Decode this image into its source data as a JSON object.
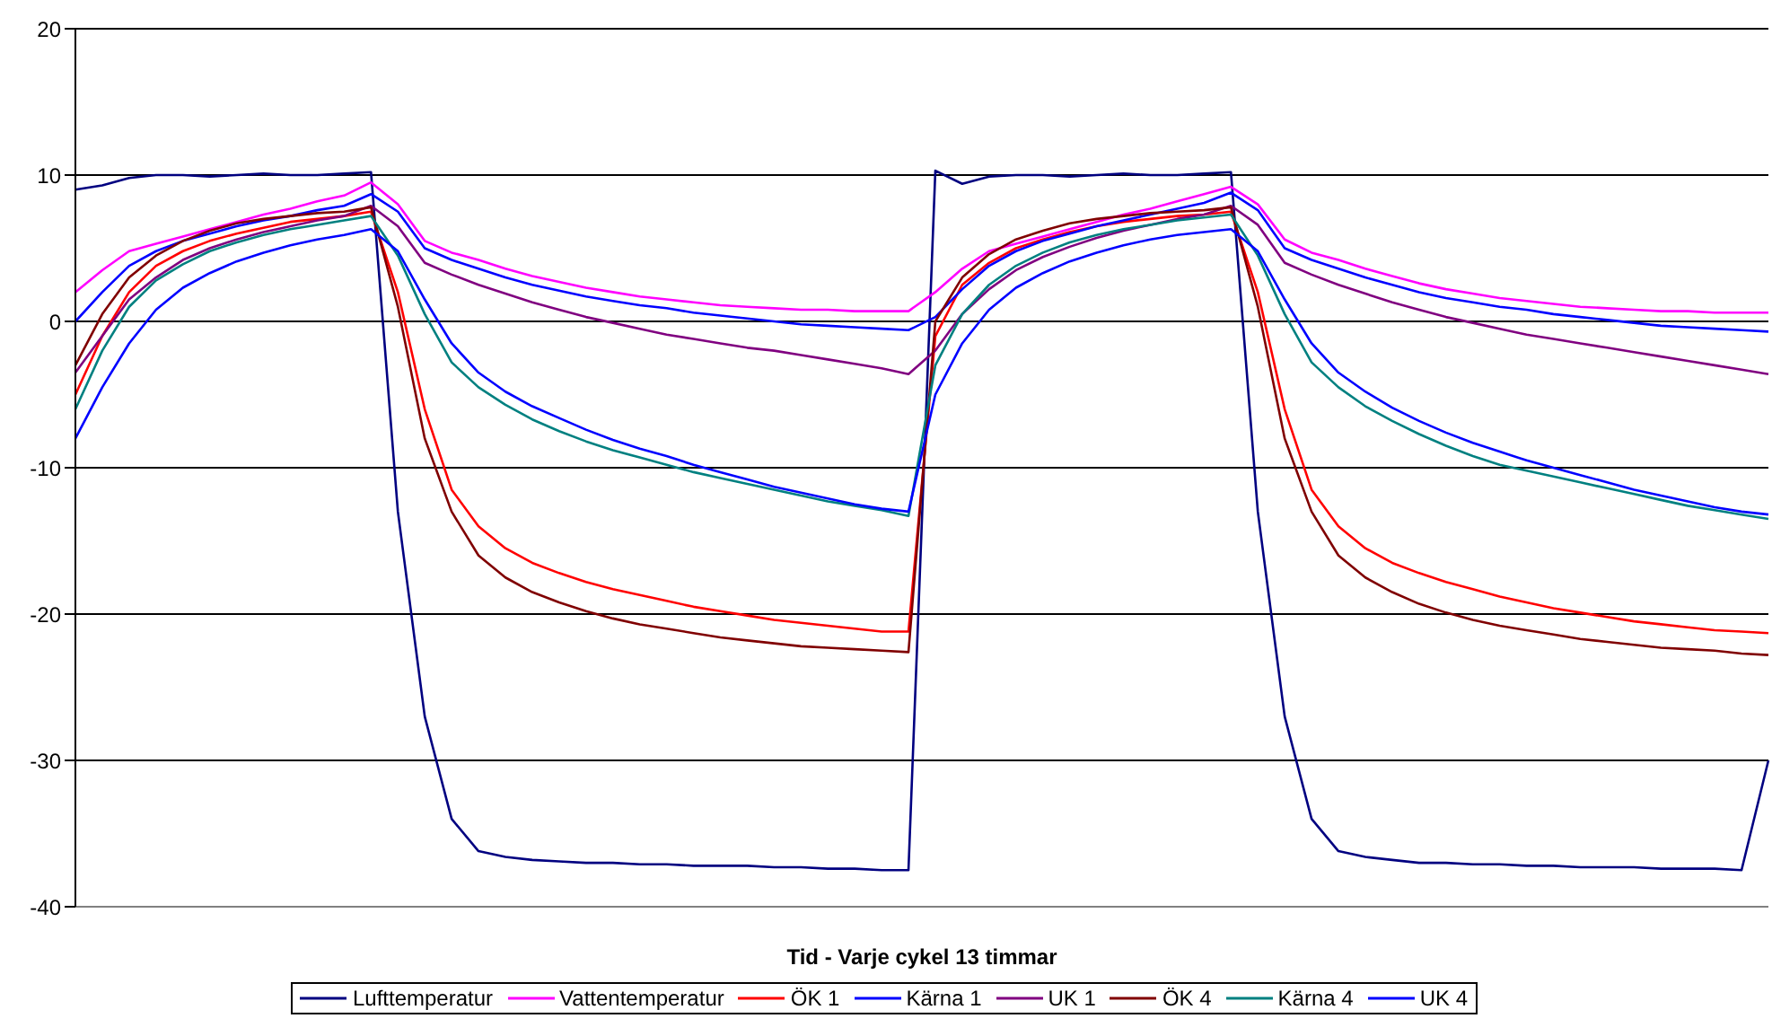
{
  "chart_data": {
    "type": "line",
    "xlabel": "Tid - Varje cykel 13 timmar",
    "categories": [
      null,
      null,
      null,
      null,
      null,
      null,
      null,
      null,
      null,
      null,
      null,
      null,
      null,
      null,
      null,
      null,
      null,
      null,
      null,
      null,
      null,
      null,
      null,
      null,
      null,
      null,
      null,
      null,
      null,
      null,
      null,
      null,
      null,
      null,
      null,
      null,
      null,
      null,
      null,
      null,
      null,
      null,
      null,
      null,
      null,
      null,
      null,
      null,
      null,
      null,
      null,
      null,
      null,
      null,
      null,
      null,
      null,
      null,
      null,
      null,
      null,
      null,
      null,
      null
    ],
    "ylim": [
      -40,
      20
    ],
    "yticks": [
      -40,
      -30,
      -20,
      -10,
      0,
      10,
      20
    ],
    "grid": "y",
    "legend": "bottom",
    "tick_labels": "y",
    "marker": "none",
    "series": [
      {
        "name": "Lufttemperatur",
        "color": "#000080",
        "values": [
          9,
          9.3,
          9.8,
          10,
          10,
          9.9,
          10,
          10.1,
          10,
          10,
          10.1,
          10.2,
          -13,
          -27,
          -34,
          -36.2,
          -36.6,
          -36.8,
          -36.9,
          -37,
          -37,
          -37.1,
          -37.1,
          -37.2,
          -37.2,
          -37.2,
          -37.3,
          -37.3,
          -37.4,
          -37.4,
          -37.5,
          -37.5,
          10.3,
          9.4,
          9.9,
          10,
          10,
          9.9,
          10,
          10.1,
          10,
          10,
          10.1,
          10.2,
          -13,
          -27,
          -34,
          -36.2,
          -36.6,
          -36.8,
          -37,
          -37,
          -37.1,
          -37.1,
          -37.2,
          -37.2,
          -37.3,
          -37.3,
          -37.3,
          -37.4,
          -37.4,
          -37.4,
          -37.5,
          -30
        ]
      },
      {
        "name": "Vattentemperatur",
        "color": "#ff00ff",
        "values": [
          2,
          3.5,
          4.8,
          5.3,
          5.8,
          6.3,
          6.8,
          7.3,
          7.7,
          8.2,
          8.6,
          9.5,
          8,
          5.5,
          4.7,
          4.2,
          3.6,
          3.1,
          2.7,
          2.3,
          2.0,
          1.7,
          1.5,
          1.3,
          1.1,
          1.0,
          0.9,
          0.8,
          0.8,
          0.7,
          0.7,
          0.7,
          2.0,
          3.6,
          4.8,
          5.3,
          5.8,
          6.3,
          6.8,
          7.3,
          7.7,
          8.2,
          8.7,
          9.2,
          8.0,
          5.6,
          4.7,
          4.2,
          3.6,
          3.1,
          2.6,
          2.2,
          1.9,
          1.6,
          1.4,
          1.2,
          1.0,
          0.9,
          0.8,
          0.7,
          0.7,
          0.6,
          0.6,
          0.6
        ]
      },
      {
        "name": "ÖK 1",
        "color": "#ff0000",
        "values": [
          -5,
          -1,
          2,
          3.8,
          4.8,
          5.5,
          6.0,
          6.4,
          6.8,
          7.0,
          7.2,
          7.5,
          2,
          -6,
          -11.5,
          -14,
          -15.5,
          -16.5,
          -17.2,
          -17.8,
          -18.3,
          -18.7,
          -19.1,
          -19.5,
          -19.8,
          -20.1,
          -20.4,
          -20.6,
          -20.8,
          -21.0,
          -21.2,
          -21.2,
          -1,
          2.5,
          4.0,
          5.0,
          5.6,
          6.1,
          6.5,
          6.8,
          7.0,
          7.2,
          7.3,
          7.5,
          2,
          -6,
          -11.5,
          -14,
          -15.5,
          -16.5,
          -17.2,
          -17.8,
          -18.3,
          -18.8,
          -19.2,
          -19.6,
          -19.9,
          -20.2,
          -20.5,
          -20.7,
          -20.9,
          -21.1,
          -21.2,
          -21.3
        ]
      },
      {
        "name": "Kärna 1",
        "color": "#0000ff",
        "values": [
          0,
          2,
          3.8,
          4.8,
          5.5,
          6.0,
          6.5,
          6.9,
          7.2,
          7.6,
          7.9,
          8.7,
          7.5,
          5,
          4.2,
          3.6,
          3.0,
          2.5,
          2.1,
          1.7,
          1.4,
          1.1,
          0.9,
          0.6,
          0.4,
          0.2,
          0.0,
          -0.2,
          -0.3,
          -0.4,
          -0.5,
          -0.6,
          0.3,
          2.2,
          3.8,
          4.8,
          5.5,
          6.0,
          6.5,
          6.9,
          7.3,
          7.7,
          8.1,
          8.8,
          7.6,
          5.0,
          4.2,
          3.6,
          3.0,
          2.5,
          2.0,
          1.6,
          1.3,
          1.0,
          0.8,
          0.5,
          0.3,
          0.1,
          -0.1,
          -0.3,
          -0.4,
          -0.5,
          -0.6,
          -0.7
        ]
      },
      {
        "name": "UK 1",
        "color": "#800080",
        "values": [
          -3.5,
          -1,
          1.5,
          3,
          4.2,
          5.0,
          5.6,
          6.1,
          6.5,
          6.9,
          7.2,
          7.9,
          6.5,
          4.0,
          3.2,
          2.5,
          1.9,
          1.3,
          0.8,
          0.3,
          -0.1,
          -0.5,
          -0.9,
          -1.2,
          -1.5,
          -1.8,
          -2.0,
          -2.3,
          -2.6,
          -2.9,
          -3.2,
          -3.6,
          -2.0,
          0.5,
          2.2,
          3.5,
          4.4,
          5.1,
          5.7,
          6.2,
          6.6,
          7.0,
          7.3,
          7.9,
          6.6,
          4.0,
          3.2,
          2.5,
          1.9,
          1.3,
          0.8,
          0.3,
          -0.1,
          -0.5,
          -0.9,
          -1.2,
          -1.5,
          -1.8,
          -2.1,
          -2.4,
          -2.7,
          -3.0,
          -3.3,
          -3.6
        ]
      },
      {
        "name": "ÖK 4",
        "color": "#800000",
        "values": [
          -3,
          0.5,
          3,
          4.5,
          5.5,
          6.2,
          6.7,
          7.0,
          7.2,
          7.4,
          7.5,
          7.8,
          1.0,
          -8,
          -13,
          -16,
          -17.5,
          -18.5,
          -19.2,
          -19.8,
          -20.3,
          -20.7,
          -21.0,
          -21.3,
          -21.6,
          -21.8,
          -22.0,
          -22.2,
          -22.3,
          -22.4,
          -22.5,
          -22.6,
          0,
          3,
          4.6,
          5.6,
          6.2,
          6.7,
          7.0,
          7.2,
          7.4,
          7.5,
          7.6,
          7.8,
          1.0,
          -8,
          -13,
          -16,
          -17.5,
          -18.5,
          -19.3,
          -19.9,
          -20.4,
          -20.8,
          -21.1,
          -21.4,
          -21.7,
          -21.9,
          -22.1,
          -22.3,
          -22.4,
          -22.5,
          -22.7,
          -22.8
        ]
      },
      {
        "name": "Kärna 4",
        "color": "#008080",
        "values": [
          -6,
          -2,
          1,
          2.8,
          3.9,
          4.8,
          5.4,
          5.9,
          6.3,
          6.6,
          6.9,
          7.2,
          4.5,
          0.5,
          -2.8,
          -4.5,
          -5.7,
          -6.7,
          -7.5,
          -8.2,
          -8.8,
          -9.3,
          -9.8,
          -10.3,
          -10.7,
          -11.1,
          -11.5,
          -11.9,
          -12.3,
          -12.6,
          -12.9,
          -13.3,
          -3,
          0.5,
          2.5,
          3.8,
          4.7,
          5.4,
          5.9,
          6.3,
          6.6,
          6.9,
          7.1,
          7.3,
          4.5,
          0.5,
          -2.8,
          -4.5,
          -5.8,
          -6.8,
          -7.7,
          -8.5,
          -9.2,
          -9.8,
          -10.2,
          -10.6,
          -11.0,
          -11.4,
          -11.8,
          -12.2,
          -12.6,
          -12.9,
          -13.2,
          -13.5
        ]
      },
      {
        "name": "UK 4",
        "color": "#0000ff",
        "values": [
          -8,
          -4.5,
          -1.5,
          0.8,
          2.3,
          3.3,
          4.1,
          4.7,
          5.2,
          5.6,
          5.9,
          6.3,
          4.8,
          1.5,
          -1.5,
          -3.5,
          -4.8,
          -5.8,
          -6.6,
          -7.4,
          -8.1,
          -8.7,
          -9.2,
          -9.8,
          -10.3,
          -10.8,
          -11.3,
          -11.7,
          -12.1,
          -12.5,
          -12.8,
          -13.0,
          -5,
          -1.5,
          0.8,
          2.3,
          3.3,
          4.1,
          4.7,
          5.2,
          5.6,
          5.9,
          6.1,
          6.3,
          4.8,
          1.5,
          -1.5,
          -3.5,
          -4.8,
          -5.9,
          -6.8,
          -7.6,
          -8.3,
          -8.9,
          -9.5,
          -10.0,
          -10.5,
          -11.0,
          -11.5,
          -11.9,
          -12.3,
          -12.7,
          -13.0,
          -13.2
        ]
      }
    ]
  }
}
